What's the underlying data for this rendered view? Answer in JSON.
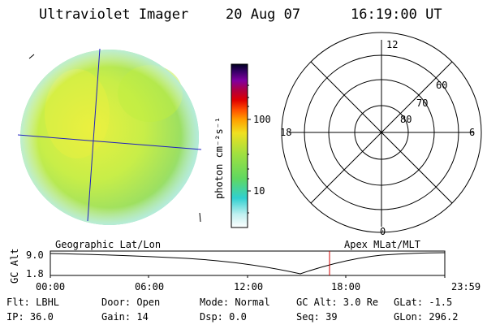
{
  "header": {
    "instrument": "Ultraviolet Imager",
    "date": "20 Aug 07",
    "time": "16:19:00 UT"
  },
  "colorbar": {
    "unit": "photon cm⁻²s⁻¹",
    "tick_upper": "100",
    "tick_lower": "10"
  },
  "polar": {
    "mlt_top": "12",
    "mlt_left": "18",
    "mlt_right": "6",
    "mlt_bottom": "0",
    "lat_60": "60",
    "lat_70": "70",
    "lat_80": "80"
  },
  "plot": {
    "left_title": "Geographic Lat/Lon",
    "right_title": "Apex MLat/MLT",
    "ylabel": "GC Alt",
    "y_top": "9.0",
    "y_bottom": "1.8",
    "xticks": [
      "00:00",
      "06:00",
      "12:00",
      "18:00",
      "23:59"
    ],
    "marker_time": "16:19"
  },
  "info": {
    "flt": "Flt: LBHL",
    "door": "Door: Open",
    "mode": "Mode: Normal",
    "gc_alt": "GC Alt: 3.0 Re",
    "glat": "GLat:  -1.5",
    "ip": "IP: 36.0",
    "gain": "Gain: 14",
    "dsp": "Dsp:    0.0",
    "seq": "Seq: 39",
    "glon": "GLon: 296.2"
  },
  "colors": {
    "grid_line": "#2020c0",
    "marker": "#d00000"
  }
}
